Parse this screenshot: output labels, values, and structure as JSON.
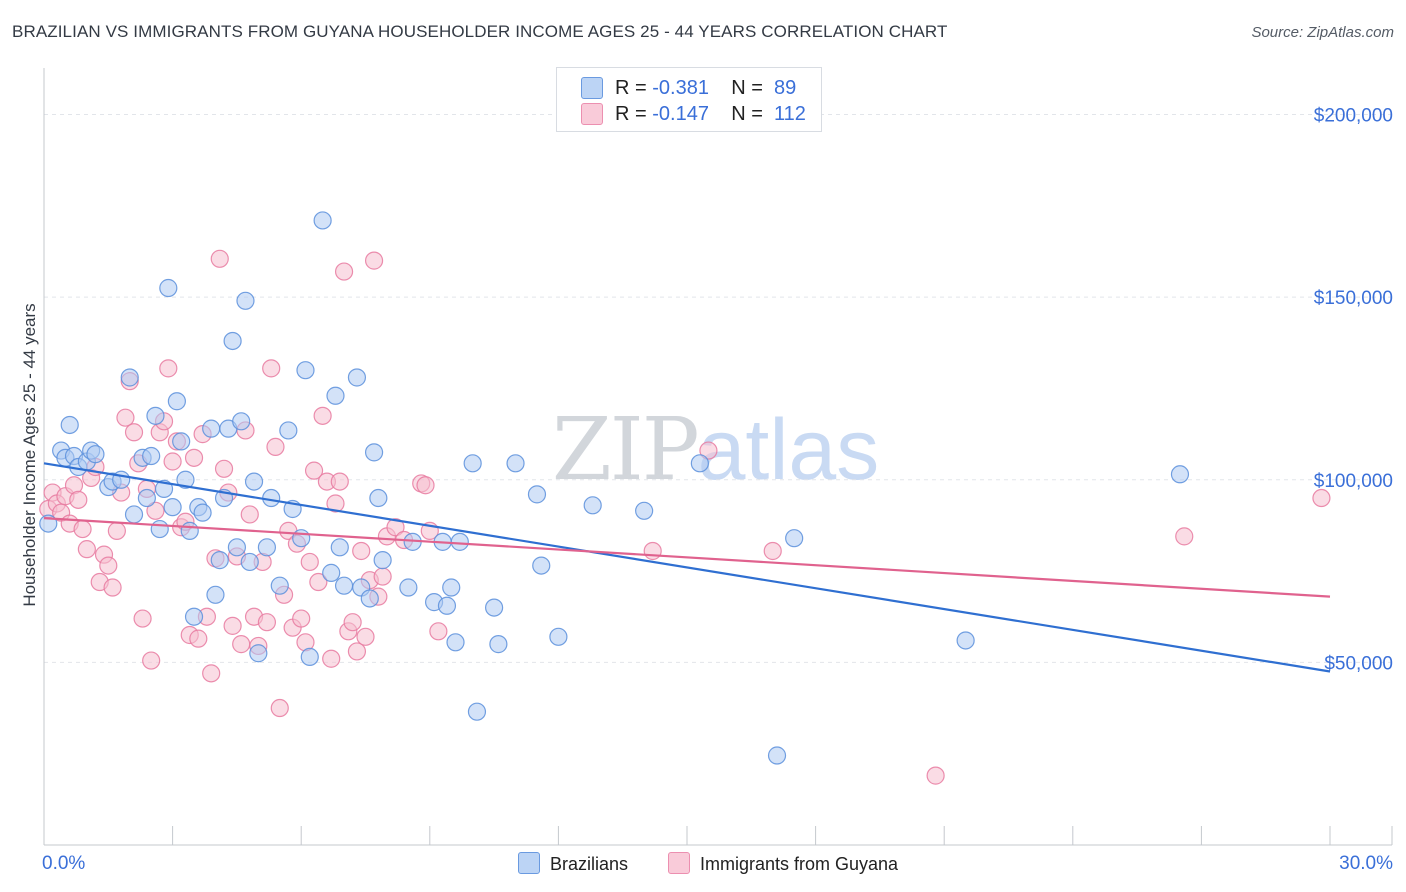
{
  "header": {
    "title": "BRAZILIAN VS IMMIGRANTS FROM GUYANA HOUSEHOLDER INCOME AGES 25 - 44 YEARS CORRELATION CHART",
    "source": "Source: ZipAtlas.com"
  },
  "watermark": {
    "zip": "ZIP",
    "atlas": "atlas"
  },
  "legend": {
    "rows": [
      {
        "r_label": "R =",
        "r_value": "-0.381",
        "n_label": "N =",
        "n_value": "89"
      },
      {
        "r_label": "R =",
        "r_value": "-0.147",
        "n_label": "N =",
        "n_value": "112"
      }
    ]
  },
  "bottom_legend": {
    "series1": "Brazilians",
    "series2": "Immigrants from Guyana"
  },
  "colors": {
    "blue_fill": "#aecbf2",
    "blue_stroke": "#5b8fdc",
    "blue_line": "#2f6fd1",
    "pink_fill": "#f6bfd0",
    "pink_stroke": "#e87aa0",
    "pink_line": "#e0628e",
    "axis_label": "#3a6fd8",
    "grid": "#e2e5ea"
  },
  "chart_data": {
    "type": "scatter",
    "title": "BRAZILIAN VS IMMIGRANTS FROM GUYANA HOUSEHOLDER INCOME AGES 25 - 44 YEARS CORRELATION CHART",
    "xlabel": "",
    "ylabel": "Householder Income Ages 25 - 44 years",
    "xlim": [
      0,
      30
    ],
    "ylim": [
      0,
      210000
    ],
    "x_tick_labels": [
      "0.0%",
      "30.0%"
    ],
    "y_ticks": [
      50000,
      100000,
      150000,
      200000
    ],
    "y_tick_labels": [
      "$50,000",
      "$100,000",
      "$150,000",
      "$200,000"
    ],
    "grid": true,
    "legend_position": "top-center",
    "series": [
      {
        "name": "Brazilians",
        "color": "#5b8fdc",
        "R": -0.381,
        "N": 89,
        "trend": {
          "x": [
            0,
            30
          ],
          "y": [
            104500,
            47500
          ]
        },
        "points": [
          [
            0.1,
            88000
          ],
          [
            0.4,
            108000
          ],
          [
            0.5,
            106000
          ],
          [
            0.6,
            115000
          ],
          [
            0.7,
            106500
          ],
          [
            0.8,
            103500
          ],
          [
            1.0,
            105000
          ],
          [
            1.1,
            108000
          ],
          [
            1.2,
            107000
          ],
          [
            1.5,
            98000
          ],
          [
            1.6,
            99500
          ],
          [
            1.8,
            100000
          ],
          [
            2.0,
            128000
          ],
          [
            2.1,
            90500
          ],
          [
            2.3,
            106000
          ],
          [
            2.4,
            95000
          ],
          [
            2.5,
            106500
          ],
          [
            2.6,
            117500
          ],
          [
            2.7,
            86500
          ],
          [
            2.8,
            97500
          ],
          [
            2.9,
            152500
          ],
          [
            3.0,
            92500
          ],
          [
            3.1,
            121500
          ],
          [
            3.2,
            110500
          ],
          [
            3.3,
            100000
          ],
          [
            3.4,
            86000
          ],
          [
            3.5,
            62500
          ],
          [
            3.6,
            92500
          ],
          [
            3.7,
            91000
          ],
          [
            3.9,
            114000
          ],
          [
            4.0,
            68500
          ],
          [
            4.1,
            78000
          ],
          [
            4.2,
            95000
          ],
          [
            4.3,
            114000
          ],
          [
            4.4,
            138000
          ],
          [
            4.5,
            81500
          ],
          [
            4.6,
            116000
          ],
          [
            4.7,
            149000
          ],
          [
            4.8,
            77500
          ],
          [
            4.9,
            99500
          ],
          [
            5.0,
            52500
          ],
          [
            5.2,
            81500
          ],
          [
            5.3,
            95000
          ],
          [
            5.5,
            71000
          ],
          [
            5.7,
            113500
          ],
          [
            5.8,
            92000
          ],
          [
            6.0,
            84000
          ],
          [
            6.1,
            130000
          ],
          [
            6.2,
            51500
          ],
          [
            6.5,
            171000
          ],
          [
            6.7,
            74500
          ],
          [
            6.8,
            123000
          ],
          [
            6.9,
            81500
          ],
          [
            7.0,
            71000
          ],
          [
            7.3,
            128000
          ],
          [
            7.4,
            70500
          ],
          [
            7.6,
            67500
          ],
          [
            7.7,
            107500
          ],
          [
            7.8,
            95000
          ],
          [
            7.9,
            78000
          ],
          [
            8.5,
            70500
          ],
          [
            8.6,
            83000
          ],
          [
            9.1,
            66500
          ],
          [
            9.4,
            65500
          ],
          [
            9.5,
            70500
          ],
          [
            9.6,
            55500
          ],
          [
            9.3,
            83000
          ],
          [
            9.7,
            83000
          ],
          [
            10.0,
            104500
          ],
          [
            10.1,
            36500
          ],
          [
            10.5,
            65000
          ],
          [
            10.6,
            55000
          ],
          [
            11.0,
            104500
          ],
          [
            11.5,
            96000
          ],
          [
            11.6,
            76500
          ],
          [
            12.0,
            57000
          ],
          [
            12.8,
            93000
          ],
          [
            14.0,
            91500
          ],
          [
            15.3,
            104500
          ],
          [
            17.1,
            24500
          ],
          [
            17.5,
            84000
          ],
          [
            21.5,
            56000
          ],
          [
            26.5,
            101500
          ]
        ]
      },
      {
        "name": "Immigrants from Guyana",
        "color": "#e87aa0",
        "R": -0.147,
        "N": 112,
        "trend": {
          "x": [
            0,
            30
          ],
          "y": [
            89500,
            68000
          ]
        },
        "points": [
          [
            0.1,
            92000
          ],
          [
            0.2,
            96500
          ],
          [
            0.3,
            93500
          ],
          [
            0.4,
            91000
          ],
          [
            0.5,
            95500
          ],
          [
            0.6,
            88000
          ],
          [
            0.7,
            98500
          ],
          [
            0.8,
            94500
          ],
          [
            0.9,
            86500
          ],
          [
            1.0,
            81000
          ],
          [
            1.1,
            100500
          ],
          [
            1.2,
            103500
          ],
          [
            1.3,
            72000
          ],
          [
            1.4,
            79500
          ],
          [
            1.5,
            76500
          ],
          [
            1.6,
            70500
          ],
          [
            1.7,
            86000
          ],
          [
            1.8,
            96500
          ],
          [
            1.9,
            117000
          ],
          [
            2.0,
            127000
          ],
          [
            2.1,
            113000
          ],
          [
            2.2,
            104500
          ],
          [
            2.3,
            62000
          ],
          [
            2.4,
            97500
          ],
          [
            2.5,
            50500
          ],
          [
            2.6,
            91500
          ],
          [
            2.7,
            113000
          ],
          [
            2.8,
            116000
          ],
          [
            2.9,
            130500
          ],
          [
            3.0,
            105000
          ],
          [
            3.1,
            110500
          ],
          [
            3.2,
            87000
          ],
          [
            3.3,
            88500
          ],
          [
            3.4,
            57500
          ],
          [
            3.5,
            106000
          ],
          [
            3.6,
            56500
          ],
          [
            3.7,
            112500
          ],
          [
            3.8,
            62500
          ],
          [
            3.9,
            47000
          ],
          [
            4.0,
            78500
          ],
          [
            4.1,
            160500
          ],
          [
            4.2,
            103000
          ],
          [
            4.3,
            96500
          ],
          [
            4.4,
            60000
          ],
          [
            4.5,
            79000
          ],
          [
            4.6,
            55000
          ],
          [
            4.7,
            113500
          ],
          [
            4.8,
            90500
          ],
          [
            4.9,
            62500
          ],
          [
            5.0,
            54500
          ],
          [
            5.1,
            77500
          ],
          [
            5.2,
            61000
          ],
          [
            5.3,
            130500
          ],
          [
            5.4,
            109000
          ],
          [
            5.5,
            37500
          ],
          [
            5.6,
            68500
          ],
          [
            5.7,
            86000
          ],
          [
            5.8,
            59500
          ],
          [
            5.9,
            82500
          ],
          [
            6.0,
            62000
          ],
          [
            6.1,
            55500
          ],
          [
            6.2,
            77500
          ],
          [
            6.3,
            102500
          ],
          [
            6.4,
            72000
          ],
          [
            6.5,
            117500
          ],
          [
            6.6,
            99500
          ],
          [
            6.7,
            51000
          ],
          [
            6.8,
            93500
          ],
          [
            6.9,
            99500
          ],
          [
            7.0,
            157000
          ],
          [
            7.1,
            58500
          ],
          [
            7.2,
            61000
          ],
          [
            7.3,
            53000
          ],
          [
            7.4,
            80500
          ],
          [
            7.5,
            57000
          ],
          [
            7.6,
            72500
          ],
          [
            7.7,
            160000
          ],
          [
            7.8,
            68000
          ],
          [
            7.9,
            73500
          ],
          [
            8.0,
            84500
          ],
          [
            8.2,
            87000
          ],
          [
            8.4,
            83500
          ],
          [
            8.8,
            99000
          ],
          [
            8.9,
            98500
          ],
          [
            9.0,
            86000
          ],
          [
            9.2,
            58500
          ],
          [
            14.2,
            80500
          ],
          [
            15.5,
            108000
          ],
          [
            17.0,
            80500
          ],
          [
            20.8,
            19000
          ],
          [
            26.6,
            84500
          ],
          [
            29.8,
            95000
          ]
        ]
      }
    ]
  }
}
